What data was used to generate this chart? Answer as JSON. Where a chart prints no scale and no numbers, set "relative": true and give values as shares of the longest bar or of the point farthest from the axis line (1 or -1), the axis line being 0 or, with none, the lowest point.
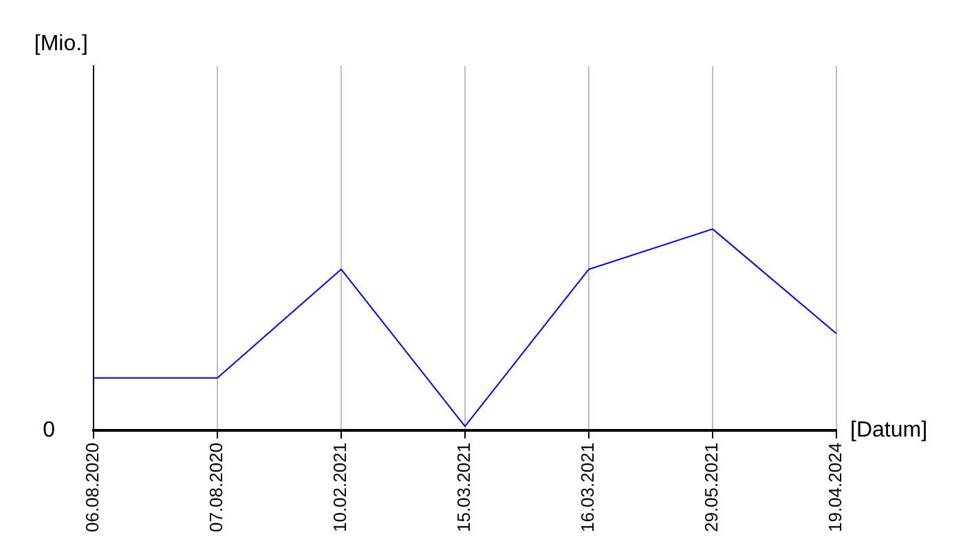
{
  "chart_data": {
    "type": "line",
    "relative": true,
    "xlabel": "[Datum]",
    "annotations": [
      "[Mio.]",
      "0"
    ],
    "categories": [
      "06.08.2020",
      "07.08.2020",
      "10.02.2021",
      "15.03.2021",
      "16.03.2021",
      "29.05.2021",
      "19.04.2024"
    ],
    "series": [
      {
        "color": "#0000ff",
        "values": [
          0.26,
          0.26,
          0.8,
          0.02,
          0.8,
          1,
          0.48
        ]
      }
    ],
    "grid": "x",
    "legend": false,
    "marker": "none",
    "line_style": "solid"
  }
}
